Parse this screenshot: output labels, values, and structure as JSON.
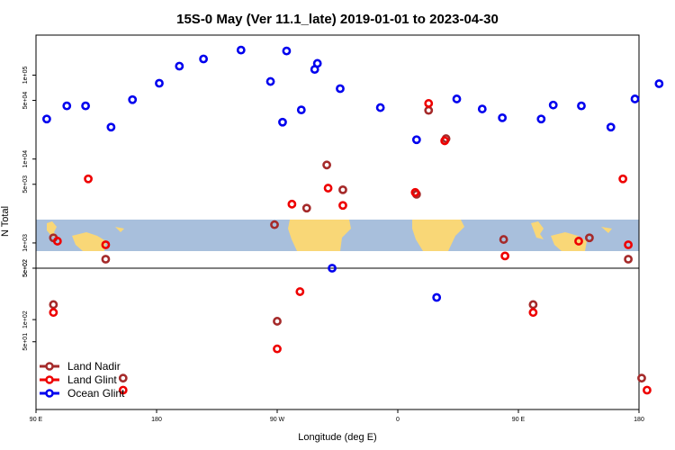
{
  "chart_data": {
    "type": "scatter",
    "title": "15S-0 May (Ver 11.1_late)   2019-01-01 to 2023-04-30",
    "xlabel": "Longitude (deg E)",
    "ylabel": "N Total",
    "x_tick_labels": [
      "90 E",
      "180",
      "90 W",
      "0",
      "90 E",
      "180"
    ],
    "x_ticks_deg": [
      90,
      180,
      270,
      360,
      450,
      540
    ],
    "xlim": [
      90,
      540
    ],
    "upper_panel": {
      "scale": "log",
      "y_tick_labels": [
        "5e+02",
        "1e+03",
        "5e+03",
        "1e+04",
        "5e+04",
        "1e+05"
      ],
      "y_ticks": [
        500,
        1000,
        5000,
        10000,
        50000,
        100000
      ],
      "ylim": [
        500,
        300000
      ]
    },
    "lower_panel": {
      "scale": "log",
      "y_tick_labels": [
        "5e+01",
        "1e+02",
        "5e+02"
      ],
      "y_ticks": [
        50,
        100,
        500
      ],
      "ylim": [
        6,
        500
      ]
    },
    "background_map": "world land mask band centered on 15S, longitudes 90E to 180 and beyond",
    "map_colors": {
      "ocean": "#a8bfdc",
      "land": "#f9d777"
    },
    "legend_position": "bottom-left",
    "series": [
      {
        "name": "Land Nadir",
        "color": "#a52a2a",
        "points": [
          {
            "x": 103,
            "panel": "upper",
            "y": 1150
          },
          {
            "x": 142,
            "panel": "upper",
            "y": 640
          },
          {
            "x": 268,
            "panel": "upper",
            "y": 1650
          },
          {
            "x": 292,
            "panel": "upper",
            "y": 2600
          },
          {
            "x": 307,
            "panel": "upper",
            "y": 8500
          },
          {
            "x": 319,
            "panel": "upper",
            "y": 4300
          },
          {
            "x": 374,
            "panel": "upper",
            "y": 3800
          },
          {
            "x": 383,
            "panel": "upper",
            "y": 38000
          },
          {
            "x": 396,
            "panel": "upper",
            "y": 17500
          },
          {
            "x": 439,
            "panel": "upper",
            "y": 1100
          },
          {
            "x": 503,
            "panel": "upper",
            "y": 1150
          },
          {
            "x": 532,
            "panel": "upper",
            "y": 640
          },
          {
            "x": 103,
            "panel": "lower",
            "y": 160
          },
          {
            "x": 155,
            "panel": "lower",
            "y": 16
          },
          {
            "x": 270,
            "panel": "lower",
            "y": 95
          },
          {
            "x": 461,
            "panel": "lower",
            "y": 160
          },
          {
            "x": 542,
            "panel": "lower",
            "y": 16
          }
        ]
      },
      {
        "name": "Land Glint",
        "color": "#ee0000",
        "points": [
          {
            "x": 106,
            "panel": "upper",
            "y": 1050
          },
          {
            "x": 129,
            "panel": "upper",
            "y": 5800
          },
          {
            "x": 142,
            "panel": "upper",
            "y": 950
          },
          {
            "x": 281,
            "panel": "upper",
            "y": 2900
          },
          {
            "x": 308,
            "panel": "upper",
            "y": 4500
          },
          {
            "x": 319,
            "panel": "upper",
            "y": 2800
          },
          {
            "x": 373,
            "panel": "upper",
            "y": 4000
          },
          {
            "x": 383,
            "panel": "upper",
            "y": 46000
          },
          {
            "x": 395,
            "panel": "upper",
            "y": 16500
          },
          {
            "x": 440,
            "panel": "upper",
            "y": 700
          },
          {
            "x": 495,
            "panel": "upper",
            "y": 1050
          },
          {
            "x": 528,
            "panel": "upper",
            "y": 5800
          },
          {
            "x": 532,
            "panel": "upper",
            "y": 950
          },
          {
            "x": 103,
            "panel": "lower",
            "y": 125
          },
          {
            "x": 155,
            "panel": "lower",
            "y": 11
          },
          {
            "x": 270,
            "panel": "lower",
            "y": 40
          },
          {
            "x": 287,
            "panel": "lower",
            "y": 240
          },
          {
            "x": 461,
            "panel": "lower",
            "y": 125
          },
          {
            "x": 546,
            "panel": "lower",
            "y": 11
          }
        ]
      },
      {
        "name": "Ocean Glint",
        "color": "#0000ee",
        "points": [
          {
            "x": 98,
            "panel": "upper",
            "y": 30000
          },
          {
            "x": 113,
            "panel": "upper",
            "y": 43000
          },
          {
            "x": 127,
            "panel": "upper",
            "y": 43000
          },
          {
            "x": 146,
            "panel": "upper",
            "y": 24000
          },
          {
            "x": 162,
            "panel": "upper",
            "y": 51000
          },
          {
            "x": 182,
            "panel": "upper",
            "y": 80000
          },
          {
            "x": 197,
            "panel": "upper",
            "y": 128000
          },
          {
            "x": 215,
            "panel": "upper",
            "y": 156000
          },
          {
            "x": 243,
            "panel": "upper",
            "y": 199000
          },
          {
            "x": 277,
            "panel": "upper",
            "y": 194000
          },
          {
            "x": 300,
            "panel": "upper",
            "y": 138000
          },
          {
            "x": 265,
            "panel": "upper",
            "y": 84000
          },
          {
            "x": 274,
            "panel": "upper",
            "y": 27500
          },
          {
            "x": 288,
            "panel": "upper",
            "y": 38500
          },
          {
            "x": 298,
            "panel": "upper",
            "y": 117000
          },
          {
            "x": 317,
            "panel": "upper",
            "y": 69000
          },
          {
            "x": 347,
            "panel": "upper",
            "y": 41000
          },
          {
            "x": 374,
            "panel": "upper",
            "y": 17000
          },
          {
            "x": 404,
            "panel": "upper",
            "y": 52000
          },
          {
            "x": 423,
            "panel": "upper",
            "y": 39500
          },
          {
            "x": 438,
            "panel": "upper",
            "y": 31000
          },
          {
            "x": 467,
            "panel": "upper",
            "y": 30000
          },
          {
            "x": 476,
            "panel": "upper",
            "y": 44000
          },
          {
            "x": 497,
            "panel": "upper",
            "y": 43000
          },
          {
            "x": 519,
            "panel": "upper",
            "y": 24000
          },
          {
            "x": 537,
            "panel": "upper",
            "y": 52000
          },
          {
            "x": 555,
            "panel": "upper",
            "y": 79000
          },
          {
            "x": 311,
            "panel": "lower",
            "y": 500
          },
          {
            "x": 389,
            "panel": "lower",
            "y": 200
          }
        ]
      }
    ]
  }
}
